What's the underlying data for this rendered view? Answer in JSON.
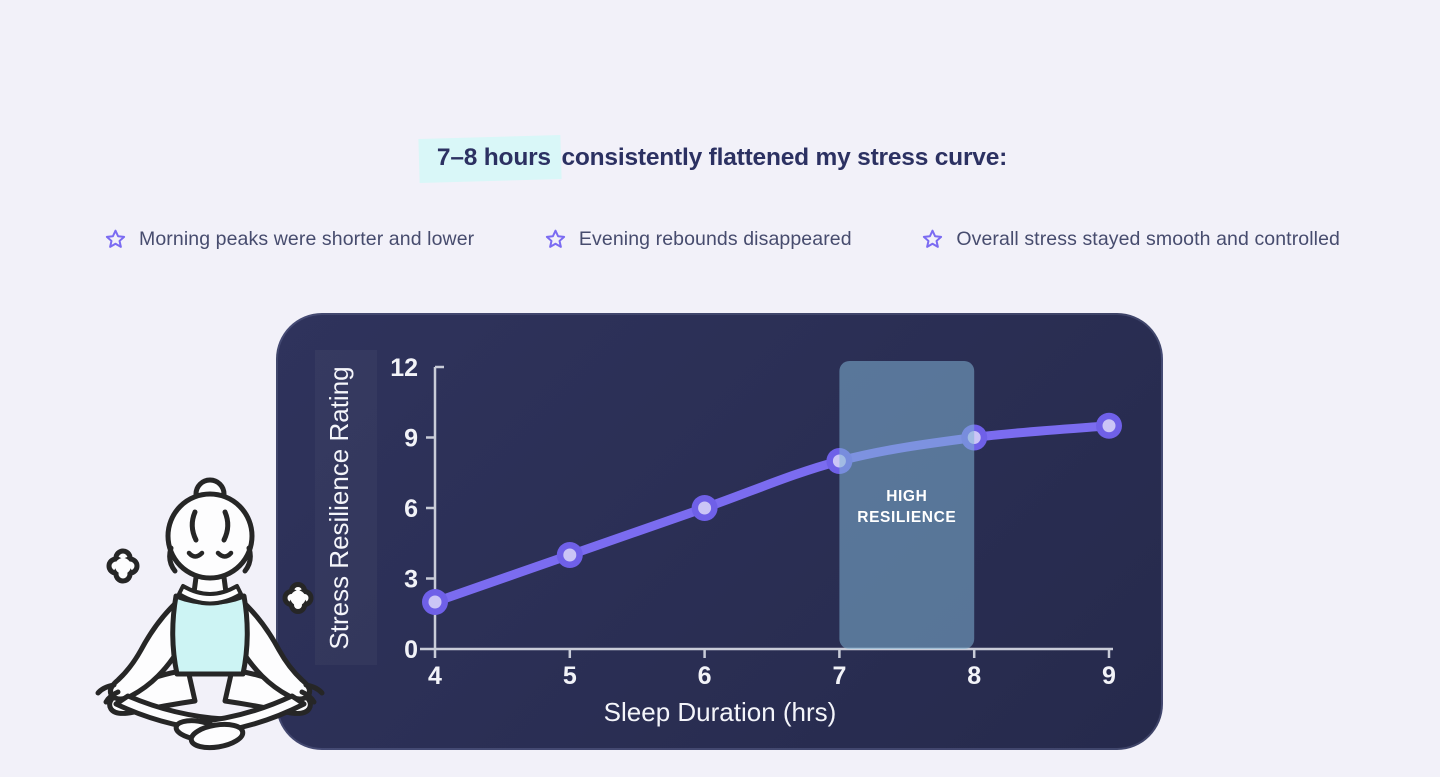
{
  "theme": {
    "page_bg": "#f2f1f9",
    "accent": "#7b6bf2",
    "highlight": "#d9f7f8",
    "headline_color": "#2c3162",
    "card_bg": "#2b2f55"
  },
  "headline": {
    "highlight": "7–8 hours",
    "rest": " consistently flattened my stress curve:"
  },
  "bullets": [
    {
      "icon": "star-icon",
      "label": "Morning peaks were shorter and lower"
    },
    {
      "icon": "star-icon",
      "label": "Evening rebounds disappeared"
    },
    {
      "icon": "star-icon",
      "label": "Overall stress stayed smooth and controlled"
    }
  ],
  "illustration": {
    "name": "meditating-person-icon",
    "top_color": "#cdf4f4",
    "line_color": "#262626"
  },
  "chart_data": {
    "type": "line",
    "x": [
      4,
      5,
      6,
      7,
      8,
      9
    ],
    "series": [
      {
        "name": "Stress Resilience Rating",
        "values": [
          2,
          4,
          6,
          8,
          9,
          9.5
        ]
      }
    ],
    "title": "",
    "xlabel": "Sleep Duration (hrs)",
    "ylabel": "Stress Resilience Rating",
    "xlim": [
      4,
      9
    ],
    "ylim": [
      0,
      12
    ],
    "xticks": [
      4,
      5,
      6,
      7,
      8,
      9
    ],
    "yticks": [
      0,
      3,
      6,
      9,
      12
    ],
    "grid": false,
    "legend": false,
    "highlight_band": {
      "x_start": 7,
      "x_end": 8,
      "label": "HIGH RESILIENCE",
      "color": "#7fb3d4",
      "opacity": 0.55
    },
    "line_color": "#7b6cf0",
    "point_stroke": "#6f60e8",
    "point_fill": "#cbc5f6",
    "axis_color": "#c9ccd8",
    "text_color": "#f4f5fa"
  }
}
